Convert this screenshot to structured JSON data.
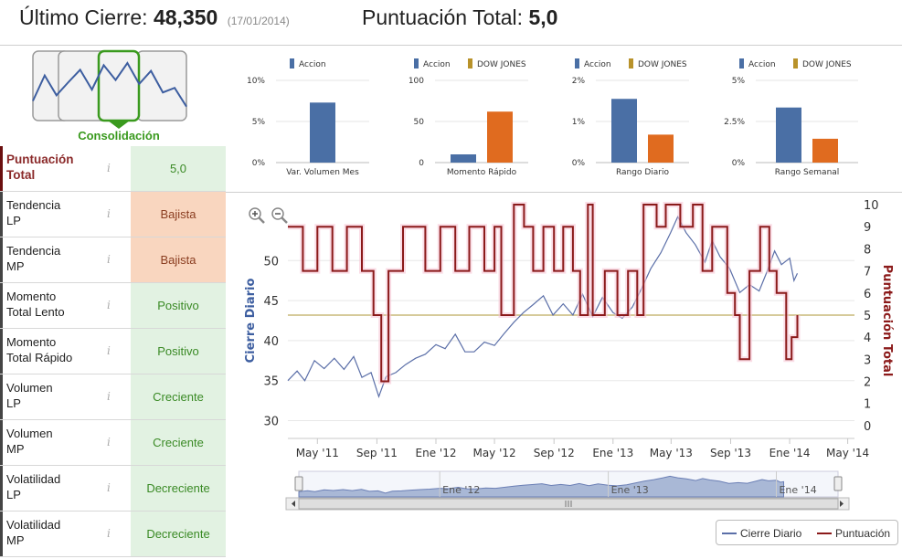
{
  "header": {
    "last_close_label": "Último Cierre:",
    "last_close_value": "48,350",
    "last_close_date": "(17/01/2014)",
    "score_label": "Puntuación Total:",
    "score_value": "5,0"
  },
  "consolidation": {
    "label": "Consolidación",
    "sparkline": [
      0.25,
      0.7,
      0.35,
      0.58,
      0.8,
      0.45,
      0.88,
      0.62,
      0.92,
      0.55,
      0.78,
      0.4,
      0.48,
      0.15
    ]
  },
  "indicators": [
    {
      "name_line1": "Puntuación",
      "name_line2": "Total",
      "value": "5,0",
      "status": "good",
      "main": true
    },
    {
      "name_line1": "Tendencia",
      "name_line2": "LP",
      "value": "Bajista",
      "status": "bad"
    },
    {
      "name_line1": "Tendencia",
      "name_line2": "MP",
      "value": "Bajista",
      "status": "bad"
    },
    {
      "name_line1": "Momento",
      "name_line2": "Total Lento",
      "value": "Positivo",
      "status": "good"
    },
    {
      "name_line1": "Momento",
      "name_line2": "Total Rápido",
      "value": "Positivo",
      "status": "good"
    },
    {
      "name_line1": "Volumen",
      "name_line2": "LP",
      "value": "Creciente",
      "status": "good"
    },
    {
      "name_line1": "Volumen",
      "name_line2": "MP",
      "value": "Creciente",
      "status": "good"
    },
    {
      "name_line1": "Volatilidad",
      "name_line2": "LP",
      "value": "Decreciente",
      "status": "good"
    },
    {
      "name_line1": "Volatilidad",
      "name_line2": "MP",
      "value": "Decreciente",
      "status": "good"
    }
  ],
  "info_glyph": "i",
  "colors": {
    "accion": "#4a6fa5",
    "dow_jones": "#e06b1f",
    "dow_jones_legend": "#b8922a",
    "price_line": "#5b6fa8",
    "score_line": "#8b1a1a",
    "reference_line": "#c8b878",
    "good_bg": "#e2f2e2",
    "bad_bg": "#f9d6bf"
  },
  "chart_data": [
    {
      "type": "bar",
      "categories": [
        "Var. Volumen Mes"
      ],
      "series": [
        {
          "name": "Accion",
          "values": [
            7.3
          ]
        }
      ],
      "yticks": [
        "10%",
        "5%",
        "0%"
      ],
      "ylim": [
        0,
        10
      ]
    },
    {
      "type": "bar",
      "categories": [
        "Momento Rápido"
      ],
      "series": [
        {
          "name": "Accion",
          "values": [
            10
          ]
        },
        {
          "name": "DOW JONES",
          "values": [
            62
          ]
        }
      ],
      "yticks": [
        "100",
        "50",
        "0"
      ],
      "ylim": [
        0,
        100
      ]
    },
    {
      "type": "bar",
      "categories": [
        "Rango Diario"
      ],
      "series": [
        {
          "name": "Accion",
          "values": [
            1.55
          ]
        },
        {
          "name": "DOW JONES",
          "values": [
            0.68
          ]
        }
      ],
      "yticks": [
        "2%",
        "1%",
        "0%"
      ],
      "ylim": [
        0,
        2
      ]
    },
    {
      "type": "bar",
      "categories": [
        "Rango Semanal"
      ],
      "series": [
        {
          "name": "Accion",
          "values": [
            3.35
          ]
        },
        {
          "name": "DOW JONES",
          "values": [
            1.45
          ]
        }
      ],
      "yticks": [
        "5%",
        "2.5%",
        "0%"
      ],
      "ylim": [
        0,
        5
      ]
    },
    {
      "type": "line",
      "ylabel_left": "Cierre Diario",
      "ylabel_right": "Puntuación Total",
      "ylim_left": [
        28,
        57
      ],
      "ylim_right": [
        -0.5,
        10
      ],
      "yticks_left": [
        "30",
        "35",
        "40",
        "45",
        "50"
      ],
      "yticks_right": [
        "0",
        "1",
        "2",
        "3",
        "4",
        "5",
        "6",
        "7",
        "8",
        "9",
        "10"
      ],
      "x_range": [
        "2011-03-01",
        "2014-05-15"
      ],
      "xticks": [
        {
          "date": "2011-05-01",
          "label": "May '11"
        },
        {
          "date": "2011-09-01",
          "label": "Sep '11"
        },
        {
          "date": "2012-01-01",
          "label": "Ene '12"
        },
        {
          "date": "2012-05-01",
          "label": "May '12"
        },
        {
          "date": "2012-09-01",
          "label": "Sep '12"
        },
        {
          "date": "2013-01-01",
          "label": "Ene '13"
        },
        {
          "date": "2013-05-01",
          "label": "May '13"
        },
        {
          "date": "2013-09-01",
          "label": "Sep '13"
        },
        {
          "date": "2014-01-01",
          "label": "Ene '14"
        },
        {
          "date": "2014-05-01",
          "label": "May '14"
        }
      ],
      "navigator_labels": [
        "Ene '12",
        "Ene '13",
        "Ene '14"
      ],
      "reference_line": {
        "axis": "right",
        "value": 5
      },
      "series": [
        {
          "name": "Cierre Diario",
          "axis": "left",
          "points": [
            [
              "2011-03-01",
              35.0
            ],
            [
              "2011-03-20",
              36.2
            ],
            [
              "2011-04-05",
              35.0
            ],
            [
              "2011-04-25",
              37.5
            ],
            [
              "2011-05-15",
              36.5
            ],
            [
              "2011-06-05",
              37.8
            ],
            [
              "2011-06-25",
              36.4
            ],
            [
              "2011-07-15",
              38.0
            ],
            [
              "2011-08-01",
              35.4
            ],
            [
              "2011-08-20",
              36.0
            ],
            [
              "2011-09-05",
              33.0
            ],
            [
              "2011-09-20",
              35.5
            ],
            [
              "2011-10-10",
              36.0
            ],
            [
              "2011-10-30",
              37.0
            ],
            [
              "2011-11-20",
              37.8
            ],
            [
              "2011-12-10",
              38.3
            ],
            [
              "2012-01-01",
              39.5
            ],
            [
              "2012-01-20",
              39.0
            ],
            [
              "2012-02-10",
              40.8
            ],
            [
              "2012-03-01",
              38.6
            ],
            [
              "2012-03-20",
              38.6
            ],
            [
              "2012-04-10",
              39.8
            ],
            [
              "2012-05-01",
              39.4
            ],
            [
              "2012-05-20",
              40.8
            ],
            [
              "2012-06-10",
              42.3
            ],
            [
              "2012-06-30",
              43.5
            ],
            [
              "2012-07-20",
              44.5
            ],
            [
              "2012-08-10",
              45.6
            ],
            [
              "2012-08-30",
              43.2
            ],
            [
              "2012-09-20",
              44.6
            ],
            [
              "2012-10-10",
              43.2
            ],
            [
              "2012-10-30",
              45.8
            ],
            [
              "2012-11-20",
              43.0
            ],
            [
              "2012-12-10",
              45.4
            ],
            [
              "2013-01-01",
              43.5
            ],
            [
              "2013-01-20",
              42.8
            ],
            [
              "2013-02-10",
              44.2
            ],
            [
              "2013-03-01",
              46.5
            ],
            [
              "2013-03-20",
              49.0
            ],
            [
              "2013-04-10",
              51.0
            ],
            [
              "2013-04-30",
              53.5
            ],
            [
              "2013-05-15",
              55.5
            ],
            [
              "2013-06-01",
              53.5
            ],
            [
              "2013-06-20",
              52.0
            ],
            [
              "2013-07-10",
              49.8
            ],
            [
              "2013-07-25",
              52.5
            ],
            [
              "2013-08-10",
              50.5
            ],
            [
              "2013-08-30",
              49.0
            ],
            [
              "2013-09-20",
              46.0
            ],
            [
              "2013-10-10",
              47.0
            ],
            [
              "2013-10-30",
              46.2
            ],
            [
              "2013-11-15",
              48.6
            ],
            [
              "2013-12-01",
              51.2
            ],
            [
              "2013-12-15",
              49.5
            ],
            [
              "2014-01-01",
              50.3
            ],
            [
              "2014-01-10",
              47.5
            ],
            [
              "2014-01-17",
              48.4
            ]
          ]
        },
        {
          "name": "Puntuación",
          "axis": "right",
          "step": true,
          "points": [
            [
              "2011-03-01",
              9
            ],
            [
              "2011-04-01",
              7
            ],
            [
              "2011-05-01",
              9
            ],
            [
              "2011-06-01",
              7
            ],
            [
              "2011-07-01",
              9
            ],
            [
              "2011-08-01",
              7
            ],
            [
              "2011-08-25",
              5
            ],
            [
              "2011-09-10",
              2
            ],
            [
              "2011-09-25",
              7
            ],
            [
              "2011-10-25",
              9
            ],
            [
              "2011-12-10",
              7
            ],
            [
              "2012-01-10",
              9
            ],
            [
              "2012-02-10",
              7
            ],
            [
              "2012-03-10",
              9
            ],
            [
              "2012-04-10",
              7
            ],
            [
              "2012-05-01",
              9
            ],
            [
              "2012-05-15",
              5
            ],
            [
              "2012-06-10",
              10
            ],
            [
              "2012-07-01",
              9
            ],
            [
              "2012-07-20",
              7
            ],
            [
              "2012-08-10",
              9
            ],
            [
              "2012-09-01",
              7
            ],
            [
              "2012-09-20",
              9
            ],
            [
              "2012-10-10",
              7
            ],
            [
              "2012-10-25",
              5
            ],
            [
              "2012-11-10",
              10
            ],
            [
              "2012-11-20",
              5
            ],
            [
              "2012-12-15",
              7
            ],
            [
              "2013-01-10",
              5
            ],
            [
              "2013-02-01",
              7
            ],
            [
              "2013-02-20",
              5
            ],
            [
              "2013-03-05",
              10
            ],
            [
              "2013-04-01",
              9
            ],
            [
              "2013-04-20",
              10
            ],
            [
              "2013-05-20",
              9
            ],
            [
              "2013-06-15",
              10
            ],
            [
              "2013-07-05",
              7
            ],
            [
              "2013-07-25",
              9
            ],
            [
              "2013-08-25",
              6
            ],
            [
              "2013-09-10",
              5
            ],
            [
              "2013-09-20",
              3
            ],
            [
              "2013-10-10",
              7
            ],
            [
              "2013-11-01",
              9
            ],
            [
              "2013-11-20",
              7
            ],
            [
              "2013-12-05",
              6
            ],
            [
              "2013-12-25",
              3
            ],
            [
              "2014-01-05",
              4
            ],
            [
              "2014-01-17",
              5
            ]
          ]
        }
      ],
      "legend": [
        "Cierre Diario",
        "Puntuación"
      ]
    }
  ]
}
